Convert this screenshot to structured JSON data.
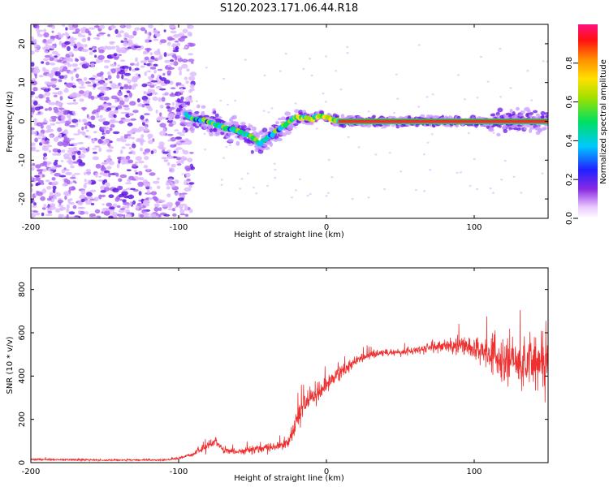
{
  "title": "S120.2023.171.06.44.R18",
  "chart_data": [
    {
      "type": "heatmap",
      "xlabel": "Height of straight line (km)",
      "ylabel": "Frequency (Hz)",
      "xlim": [
        -200,
        150
      ],
      "ylim": [
        -25,
        25
      ],
      "xticks": [
        -200,
        -100,
        0,
        100
      ],
      "xtick_labels": [
        "-200",
        "-100",
        "0",
        "100"
      ],
      "yticks": [
        -20,
        -10,
        0,
        10,
        20
      ],
      "ytick_labels": [
        "-20",
        "-10",
        "0",
        "10",
        "20"
      ],
      "ridge": {
        "x": [
          -100,
          -90,
          -80,
          -70,
          -60,
          -50,
          -45,
          -40,
          -35,
          -30,
          -25,
          -20,
          -15,
          -10,
          -5,
          0,
          5,
          10,
          50,
          100,
          150
        ],
        "y": [
          3,
          0.5,
          0,
          -1.5,
          -2.5,
          -4,
          -6,
          -4,
          -3,
          -1.5,
          0,
          1,
          1,
          0.5,
          1.5,
          1,
          0.5,
          0,
          0,
          0,
          0
        ]
      },
      "colorbar": {
        "label": "Normalized spectral amplitude",
        "range": [
          0,
          1
        ],
        "ticks": [
          0,
          0.2,
          0.4,
          0.6,
          0.8
        ],
        "tick_labels": [
          "0.0",
          "0.2",
          "0.4",
          "0.6",
          "0.8"
        ]
      }
    },
    {
      "type": "line",
      "xlabel": "Height of straight line (km)",
      "ylabel": "SNR (10 * v/v)",
      "xlim": [
        -200,
        150
      ],
      "ylim": [
        0,
        900
      ],
      "xticks": [
        -200,
        -100,
        0,
        100
      ],
      "xtick_labels": [
        "-200",
        "-100",
        "0",
        "100"
      ],
      "yticks": [
        0,
        200,
        400,
        600,
        800
      ],
      "ytick_labels": [
        "0",
        "200",
        "400",
        "600",
        "800"
      ],
      "series": [
        {
          "name": "SNR",
          "color": "#ee3030",
          "envelope": {
            "x": [
              -200,
              -150,
              -110,
              -100,
              -90,
              -80,
              -75,
              -70,
              -60,
              -50,
              -40,
              -30,
              -25,
              -20,
              -15,
              -10,
              -5,
              0,
              10,
              20,
              30,
              40,
              50,
              60,
              70,
              80,
              90,
              100,
              110,
              120,
              130,
              140,
              150
            ],
            "mean": [
              15,
              12,
              12,
              20,
              40,
              80,
              100,
              60,
              50,
              60,
              70,
              80,
              100,
              200,
              280,
              300,
              320,
              360,
              420,
              470,
              500,
              510,
              510,
              520,
              530,
              540,
              540,
              530,
              500,
              480,
              470,
              480,
              460
            ],
            "spread": [
              10,
              8,
              8,
              10,
              20,
              40,
              40,
              30,
              30,
              40,
              40,
              50,
              60,
              100,
              120,
              120,
              100,
              80,
              70,
              50,
              40,
              30,
              30,
              40,
              50,
              60,
              80,
              120,
              180,
              220,
              260,
              280,
              280
            ]
          }
        }
      ]
    }
  ]
}
